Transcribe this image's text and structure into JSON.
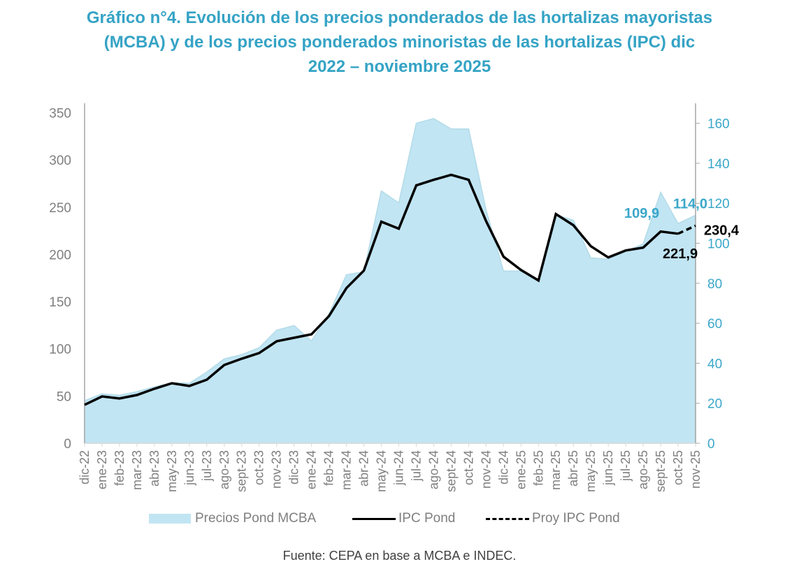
{
  "title_lines": [
    "Gráfico n°4. Evolución de los precios ponderados de las hortalizas mayoristas",
    "(MCBA) y de los precios ponderados minoristas de las hortalizas (IPC) dic",
    "2022 – noviembre 2025"
  ],
  "source": "Fuente: CEPA en base a MCBA e INDEC.",
  "colors": {
    "title": "#35a3c5",
    "area_fill": "#c1e5f3",
    "area_stroke": "#b3dbe8",
    "ipc_line": "#000000",
    "left_axis_text": "#7f7f7f",
    "right_axis_text": "#3aa7c9",
    "annotation_mcba": "#3aa7c9",
    "annotation_ipc": "#000000"
  },
  "legend": [
    {
      "label": "Precios Pond MCBA",
      "kind": "area"
    },
    {
      "label": "IPC Pond",
      "kind": "line"
    },
    {
      "label": "Proy IPC Pond",
      "kind": "dashed"
    }
  ],
  "chart_data": {
    "type": "area+line",
    "title": "Gráfico n°4. Evolución de los precios ponderados de las hortalizas mayoristas (MCBA) y de los precios ponderados minoristas de las hortalizas (IPC) dic 2022 – noviembre 2025",
    "categories": [
      "dic-22",
      "ene-23",
      "feb-23",
      "mar-23",
      "abr-23",
      "may-23",
      "jun-23",
      "jul-23",
      "ago-23",
      "sept-23",
      "oct-23",
      "nov-23",
      "dic-23",
      "ene-24",
      "feb-24",
      "mar-24",
      "abr-24",
      "may-24",
      "jun-24",
      "jul-24",
      "ago-24",
      "sept-24",
      "oct-24",
      "nov-24",
      "dic-24",
      "ene-25",
      "feb-25",
      "mar-25",
      "abr-25",
      "may-25",
      "jun-25",
      "jul-25",
      "ago-25",
      "sept-25",
      "oct-25",
      "nov-25"
    ],
    "left_axis": {
      "min": 0,
      "max": 360,
      "ticks": [
        0,
        50,
        100,
        150,
        200,
        250,
        300,
        350
      ]
    },
    "right_axis": {
      "min": 0,
      "max": 170,
      "ticks": [
        0,
        20,
        40,
        60,
        80,
        100,
        120,
        140,
        160
      ]
    },
    "series": [
      {
        "name": "Precios Pond MCBA",
        "type": "area",
        "axis": "right",
        "values": [
          21.3,
          24.7,
          24.0,
          25.8,
          28.2,
          30.3,
          30.0,
          35.6,
          42.2,
          44.3,
          47.8,
          56.5,
          58.9,
          51.2,
          64.5,
          84.3,
          85.7,
          126.2,
          120.2,
          160.0,
          162.4,
          157.2,
          157.2,
          116.8,
          86.1,
          86.1,
          81.2,
          114.3,
          111.5,
          92.7,
          92.0,
          95.9,
          99.7,
          125.5,
          109.9,
          114.0
        ]
      },
      {
        "name": "IPC Pond",
        "type": "line",
        "axis": "left",
        "values": [
          40.7,
          49.6,
          47.4,
          51.1,
          57.7,
          63.6,
          60.7,
          67.3,
          82.9,
          89.5,
          95.5,
          108.0,
          111.7,
          115.4,
          134.7,
          164.3,
          182.8,
          234.6,
          227.2,
          273.1,
          279.0,
          284.2,
          279.0,
          235.3,
          197.6,
          183.5,
          172.4,
          242.7,
          230.9,
          208.7,
          196.8,
          204.2,
          207.2,
          224.2,
          221.9,
          null
        ]
      },
      {
        "name": "Proy IPC Pond",
        "type": "dashed-line",
        "axis": "left",
        "values": [
          null,
          null,
          null,
          null,
          null,
          null,
          null,
          null,
          null,
          null,
          null,
          null,
          null,
          null,
          null,
          null,
          null,
          null,
          null,
          null,
          null,
          null,
          null,
          null,
          null,
          null,
          null,
          null,
          null,
          null,
          null,
          null,
          null,
          null,
          221.9,
          230.4
        ]
      }
    ],
    "annotations": [
      {
        "text": "109,9",
        "series": "Precios Pond MCBA",
        "category": "oct-25"
      },
      {
        "text": "114,0",
        "series": "Precios Pond MCBA",
        "category": "nov-25"
      },
      {
        "text": "221,9",
        "series": "IPC Pond",
        "category": "oct-25"
      },
      {
        "text": "230,4",
        "series": "Proy IPC Pond",
        "category": "nov-25"
      }
    ],
    "xlabel": "",
    "ylabel_left": "",
    "ylabel_right": "",
    "grid": false,
    "legend_position": "bottom"
  }
}
